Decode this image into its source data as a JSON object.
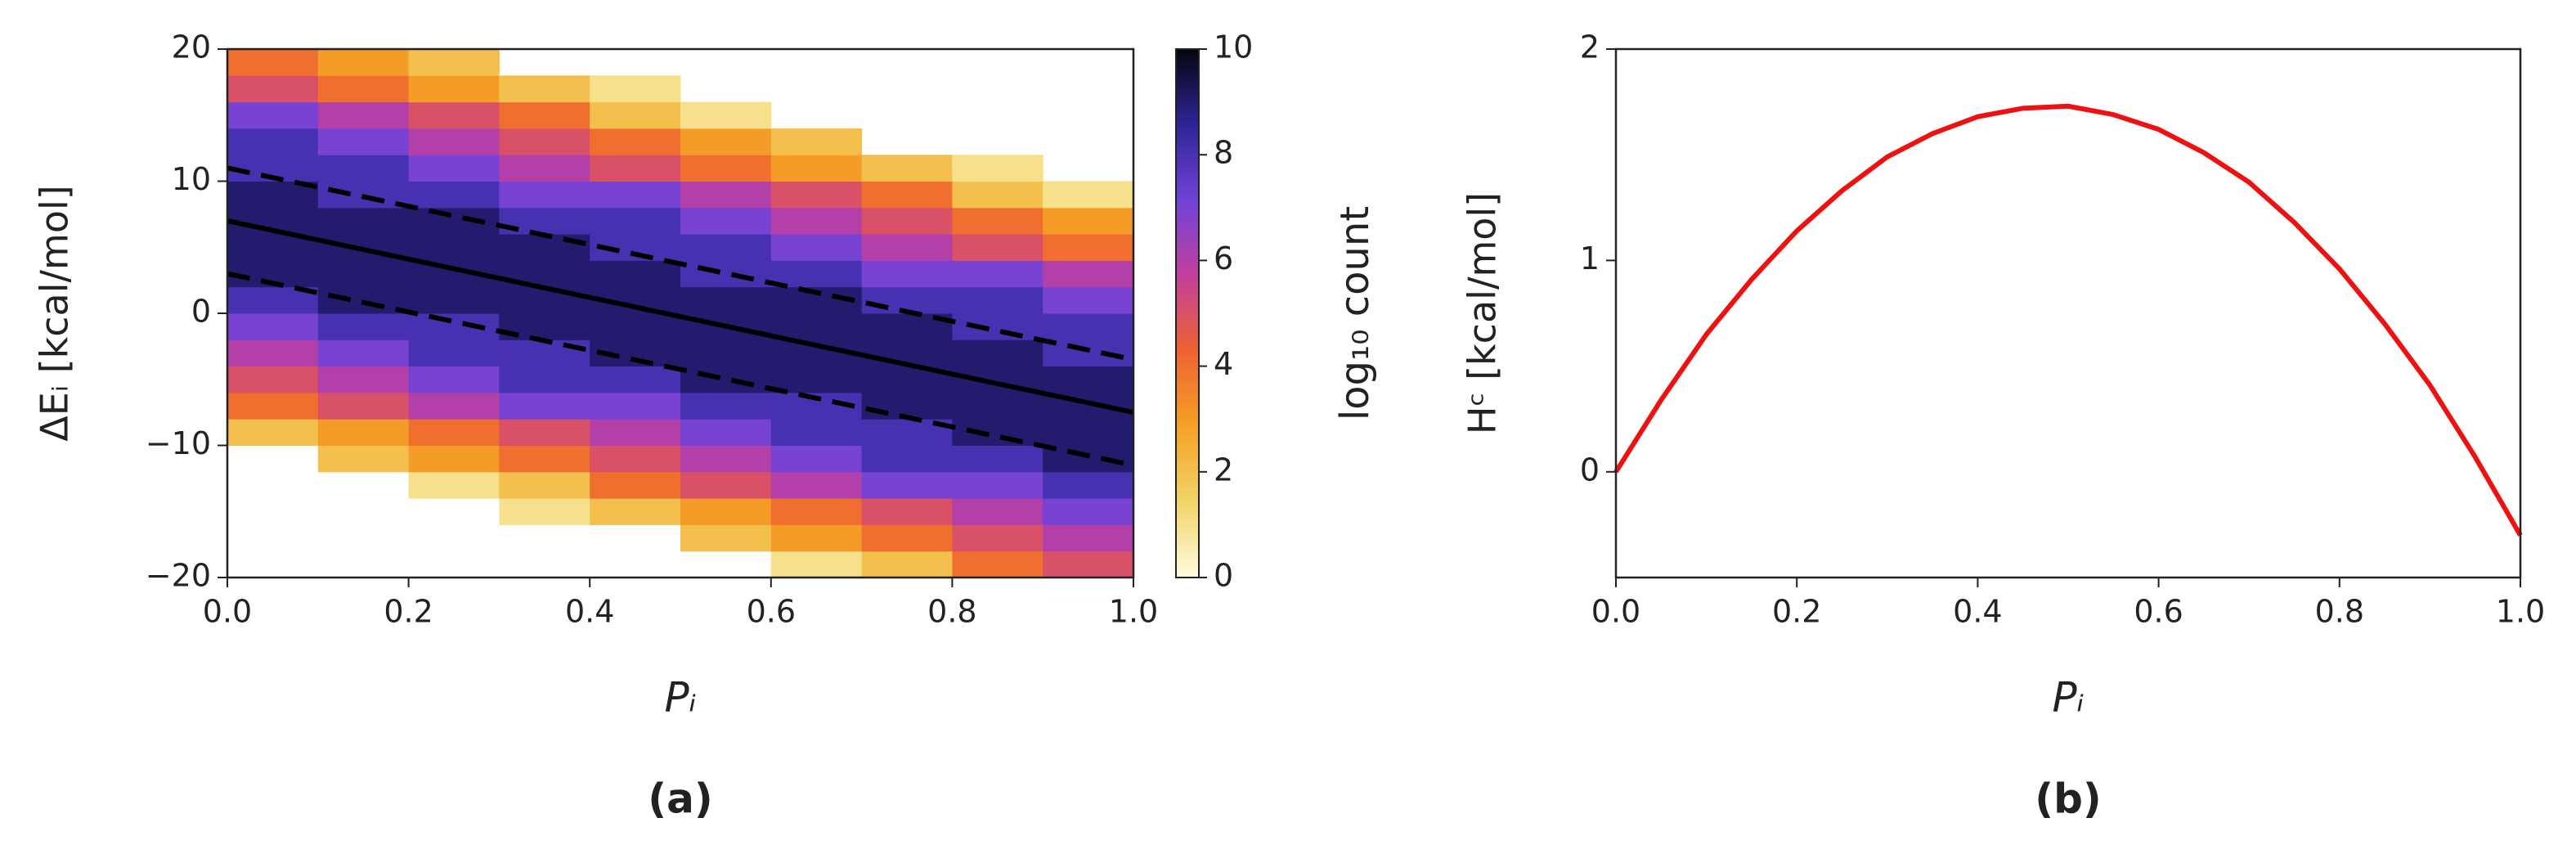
{
  "chart_data": [
    {
      "type": "hist2d",
      "caption": "(a)",
      "xlabel": "Pᵢ",
      "ylabel": "ΔEᵢ  [kcal/mol]",
      "xlim": [
        0,
        1
      ],
      "ylim": [
        -20,
        20
      ],
      "xticks": [
        {
          "value": 0,
          "label": "0.0"
        },
        {
          "value": 0.2,
          "label": "0.2"
        },
        {
          "value": 0.4,
          "label": "0.4"
        },
        {
          "value": 0.6,
          "label": "0.6"
        },
        {
          "value": 0.8,
          "label": "0.8"
        },
        {
          "value": 1,
          "label": "1.0"
        }
      ],
      "yticks": [
        {
          "value": -20,
          "label": "−20"
        },
        {
          "value": -10,
          "label": "−10"
        },
        0,
        10,
        20
      ],
      "xbins": [
        0,
        0.1,
        0.2,
        0.3,
        0.4,
        0.5,
        0.6,
        0.7,
        0.8,
        0.9,
        1
      ],
      "ybins": [
        -20,
        -18,
        -16,
        -14,
        -12,
        -10,
        -8,
        -6,
        -4,
        -2,
        0,
        2,
        4,
        6,
        8,
        10,
        12,
        14,
        16,
        18,
        20
      ],
      "z": [
        [
          null,
          null,
          null,
          null,
          null,
          null,
          1,
          2,
          4,
          5
        ],
        [
          null,
          null,
          null,
          null,
          null,
          2,
          3,
          4,
          5,
          6
        ],
        [
          null,
          null,
          null,
          1,
          2,
          3,
          4,
          5,
          6,
          7
        ],
        [
          null,
          null,
          1,
          2,
          4,
          5,
          6,
          7,
          7,
          8
        ],
        [
          null,
          2,
          3,
          4,
          5,
          6,
          7,
          8,
          8,
          9
        ],
        [
          2,
          3,
          4,
          5,
          6,
          7,
          8,
          8,
          9,
          9
        ],
        [
          4,
          5,
          6,
          7,
          7,
          8,
          8,
          9,
          9,
          9
        ],
        [
          5,
          6,
          7,
          8,
          8,
          9,
          9,
          9,
          9,
          9
        ],
        [
          6,
          7,
          8,
          8,
          9,
          9,
          9,
          9,
          9,
          8
        ],
        [
          7,
          8,
          8,
          9,
          9,
          9,
          9,
          9,
          8,
          8
        ],
        [
          8,
          9,
          9,
          9,
          9,
          9,
          9,
          8,
          8,
          7
        ],
        [
          9,
          9,
          9,
          9,
          9,
          8,
          8,
          7,
          7,
          6
        ],
        [
          9,
          9,
          9,
          9,
          8,
          8,
          7,
          6,
          5,
          4
        ],
        [
          9,
          9,
          9,
          8,
          8,
          7,
          6,
          5,
          4,
          3
        ],
        [
          9,
          8,
          8,
          7,
          7,
          6,
          5,
          4,
          2,
          1
        ],
        [
          8,
          8,
          7,
          6,
          5,
          4,
          3,
          2,
          1,
          null
        ],
        [
          8,
          7,
          6,
          5,
          4,
          3,
          2,
          null,
          null,
          null
        ],
        [
          7,
          6,
          5,
          4,
          2,
          1,
          null,
          null,
          null,
          null
        ],
        [
          5,
          4,
          3,
          2,
          1,
          null,
          null,
          null,
          null,
          null
        ],
        [
          4,
          3,
          2,
          null,
          null,
          null,
          null,
          null,
          null,
          null
        ]
      ],
      "colormap": [
        "#fffbe0",
        "#f2d468",
        "#f5a226",
        "#ef6231",
        "#c2409c",
        "#7042d8",
        "#2e2596",
        "#050510"
      ],
      "colorbar": {
        "label": "log₁₀ count",
        "lim": [
          0,
          10
        ],
        "ticks": [
          0,
          2,
          4,
          6,
          8,
          10
        ]
      },
      "lines": [
        {
          "x": [
            0,
            1
          ],
          "y": [
            11,
            -3.5
          ],
          "color": "#000000",
          "dashed": true
        },
        {
          "x": [
            0,
            1
          ],
          "y": [
            7,
            -7.5
          ],
          "color": "#000000",
          "dashed": false
        },
        {
          "x": [
            0,
            1
          ],
          "y": [
            3,
            -11.5
          ],
          "color": "#000000",
          "dashed": true
        }
      ]
    },
    {
      "type": "line",
      "caption": "(b)",
      "xlabel": "Pᵢ",
      "ylabel": "Hᶜ [kcal/mol]",
      "xlim": [
        0,
        1
      ],
      "ylim": [
        -0.5,
        2
      ],
      "xticks": [
        {
          "value": 0,
          "label": "0.0"
        },
        {
          "value": 0.2,
          "label": "0.2"
        },
        {
          "value": 0.4,
          "label": "0.4"
        },
        {
          "value": 0.6,
          "label": "0.6"
        },
        {
          "value": 0.8,
          "label": "0.8"
        },
        {
          "value": 1,
          "label": "1.0"
        }
      ],
      "yticks": [
        0,
        1,
        2
      ],
      "x": [
        0,
        0.05,
        0.1,
        0.15,
        0.2,
        0.25,
        0.3,
        0.35,
        0.4,
        0.45,
        0.5,
        0.55,
        0.6,
        0.65,
        0.7,
        0.75,
        0.8,
        0.85,
        0.9,
        0.95,
        1
      ],
      "series": [
        {
          "color": "#ee1111",
          "values": [
            0,
            0.34,
            0.65,
            0.91,
            1.14,
            1.33,
            1.49,
            1.6,
            1.68,
            1.72,
            1.73,
            1.69,
            1.62,
            1.51,
            1.37,
            1.18,
            0.96,
            0.7,
            0.41,
            0.07,
            -0.3
          ]
        }
      ]
    }
  ]
}
